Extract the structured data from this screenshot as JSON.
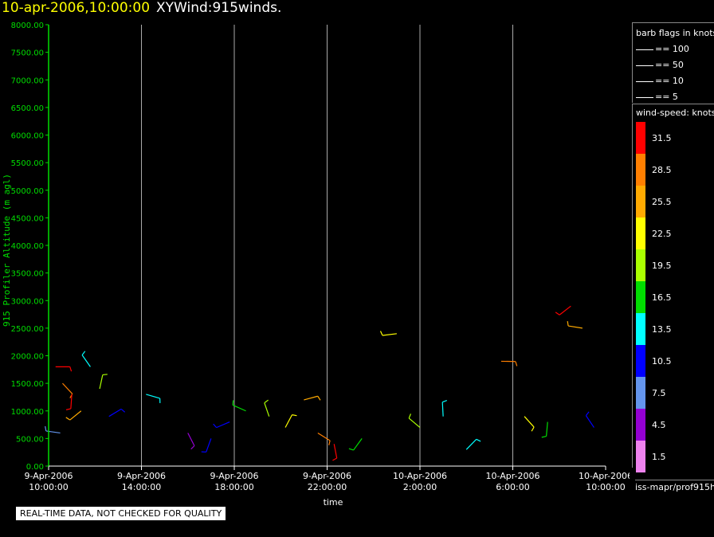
{
  "header": {
    "date_title": "10-apr-2006,10:00:00",
    "chart_title": "XYWind:915winds."
  },
  "notice": "REAL-TIME DATA, NOT CHECKED FOR QUALITY",
  "legend": {
    "barb_title": "barb flags in knots",
    "barb_rows": [
      "== 100",
      "== 50",
      "== 10",
      "== 5"
    ],
    "ws_title": "wind-speed: knots",
    "ws_bins": [
      {
        "label": "31.5",
        "color": "#ff0000"
      },
      {
        "label": "28.5",
        "color": "#ff7f00"
      },
      {
        "label": "25.5",
        "color": "#ffaa00"
      },
      {
        "label": "22.5",
        "color": "#ffff00"
      },
      {
        "label": "19.5",
        "color": "#aaff00"
      },
      {
        "label": "16.5",
        "color": "#00dd00"
      },
      {
        "label": "13.5",
        "color": "#00ffff"
      },
      {
        "label": "10.5",
        "color": "#0000ff"
      },
      {
        "label": "7.5",
        "color": "#6495ed"
      },
      {
        "label": "4.5",
        "color": "#9400d3"
      },
      {
        "label": "1.5",
        "color": "#ee82ee"
      }
    ],
    "path": "iss-mapr/prof915h"
  },
  "chart_data": {
    "type": "scatter",
    "title": "XYWind:915winds.",
    "xlabel": "time",
    "ylabel": "915 Profiler Altitude (m agl)",
    "ylim": [
      0,
      8000
    ],
    "xlim_hours_label": [
      "9-Apr-2006 10:00:00",
      "10-Apr-2006 10:00:00"
    ],
    "y_ticks": [
      "0.00",
      "500.00",
      "1000.00",
      "1500.00",
      "2000.00",
      "2500.00",
      "3000.00",
      "3500.00",
      "4000.00",
      "4500.00",
      "5000.00",
      "5500.00",
      "6000.00",
      "6500.00",
      "7000.00",
      "7500.00",
      "8000.00"
    ],
    "x_ticks": [
      {
        "line1": "9-Apr-2006",
        "line2": "10:00:00"
      },
      {
        "line1": "9-Apr-2006",
        "line2": "14:00:00"
      },
      {
        "line1": "9-Apr-2006",
        "line2": "18:00:00"
      },
      {
        "line1": "9-Apr-2006",
        "line2": "22:00:00"
      },
      {
        "line1": "10-Apr-2006",
        "line2": "2:00:00"
      },
      {
        "line1": "10-Apr-2006",
        "line2": "6:00:00"
      },
      {
        "line1": "10-Apr-2006",
        "line2": "10:00:00"
      }
    ],
    "grid": true,
    "series": [
      {
        "values": [
          {
            "x": 0.3,
            "y": 1800,
            "speed": 30
          },
          {
            "x": 0.6,
            "y": 1500,
            "speed": 28
          },
          {
            "x": 1.0,
            "y": 1300,
            "speed": 31
          },
          {
            "x": 1.4,
            "y": 1000,
            "speed": 25
          },
          {
            "x": 0.5,
            "y": 600,
            "speed": 8
          },
          {
            "x": 1.8,
            "y": 1800,
            "speed": 14
          },
          {
            "x": 2.2,
            "y": 1400,
            "speed": 20
          },
          {
            "x": 2.6,
            "y": 900,
            "speed": 10
          },
          {
            "x": 4.2,
            "y": 1300,
            "speed": 13
          },
          {
            "x": 6.0,
            "y": 600,
            "speed": 5
          },
          {
            "x": 7.0,
            "y": 500,
            "speed": 9
          },
          {
            "x": 7.8,
            "y": 800,
            "speed": 11
          },
          {
            "x": 8.5,
            "y": 1000,
            "speed": 16
          },
          {
            "x": 9.5,
            "y": 900,
            "speed": 19
          },
          {
            "x": 10.2,
            "y": 700,
            "speed": 22
          },
          {
            "x": 11.0,
            "y": 1200,
            "speed": 24
          },
          {
            "x": 11.6,
            "y": 600,
            "speed": 29
          },
          {
            "x": 12.3,
            "y": 400,
            "speed": 31
          },
          {
            "x": 13.5,
            "y": 500,
            "speed": 17
          },
          {
            "x": 15.0,
            "y": 2400,
            "speed": 21
          },
          {
            "x": 16.0,
            "y": 700,
            "speed": 18
          },
          {
            "x": 17.0,
            "y": 900,
            "speed": 14
          },
          {
            "x": 18.0,
            "y": 300,
            "speed": 12
          },
          {
            "x": 19.5,
            "y": 1900,
            "speed": 27
          },
          {
            "x": 20.5,
            "y": 900,
            "speed": 22
          },
          {
            "x": 21.5,
            "y": 800,
            "speed": 15
          },
          {
            "x": 22.5,
            "y": 2900,
            "speed": 30
          },
          {
            "x": 23.0,
            "y": 2500,
            "speed": 26
          },
          {
            "x": 23.5,
            "y": 700,
            "speed": 11
          }
        ]
      }
    ]
  }
}
